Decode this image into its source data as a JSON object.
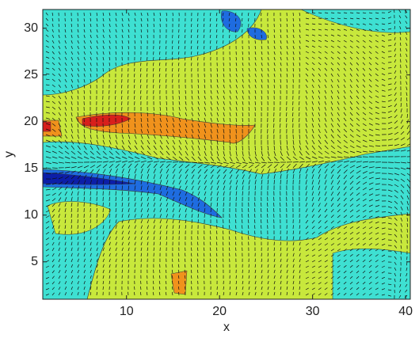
{
  "chart_data": {
    "type": "contour",
    "x_label": "x",
    "y_label": "y",
    "xlim": [
      1,
      40.5
    ],
    "ylim": [
      1,
      32
    ],
    "xticks": [
      10,
      20,
      30,
      40
    ],
    "yticks": [
      5,
      10,
      15,
      20,
      25,
      30
    ]
  }
}
